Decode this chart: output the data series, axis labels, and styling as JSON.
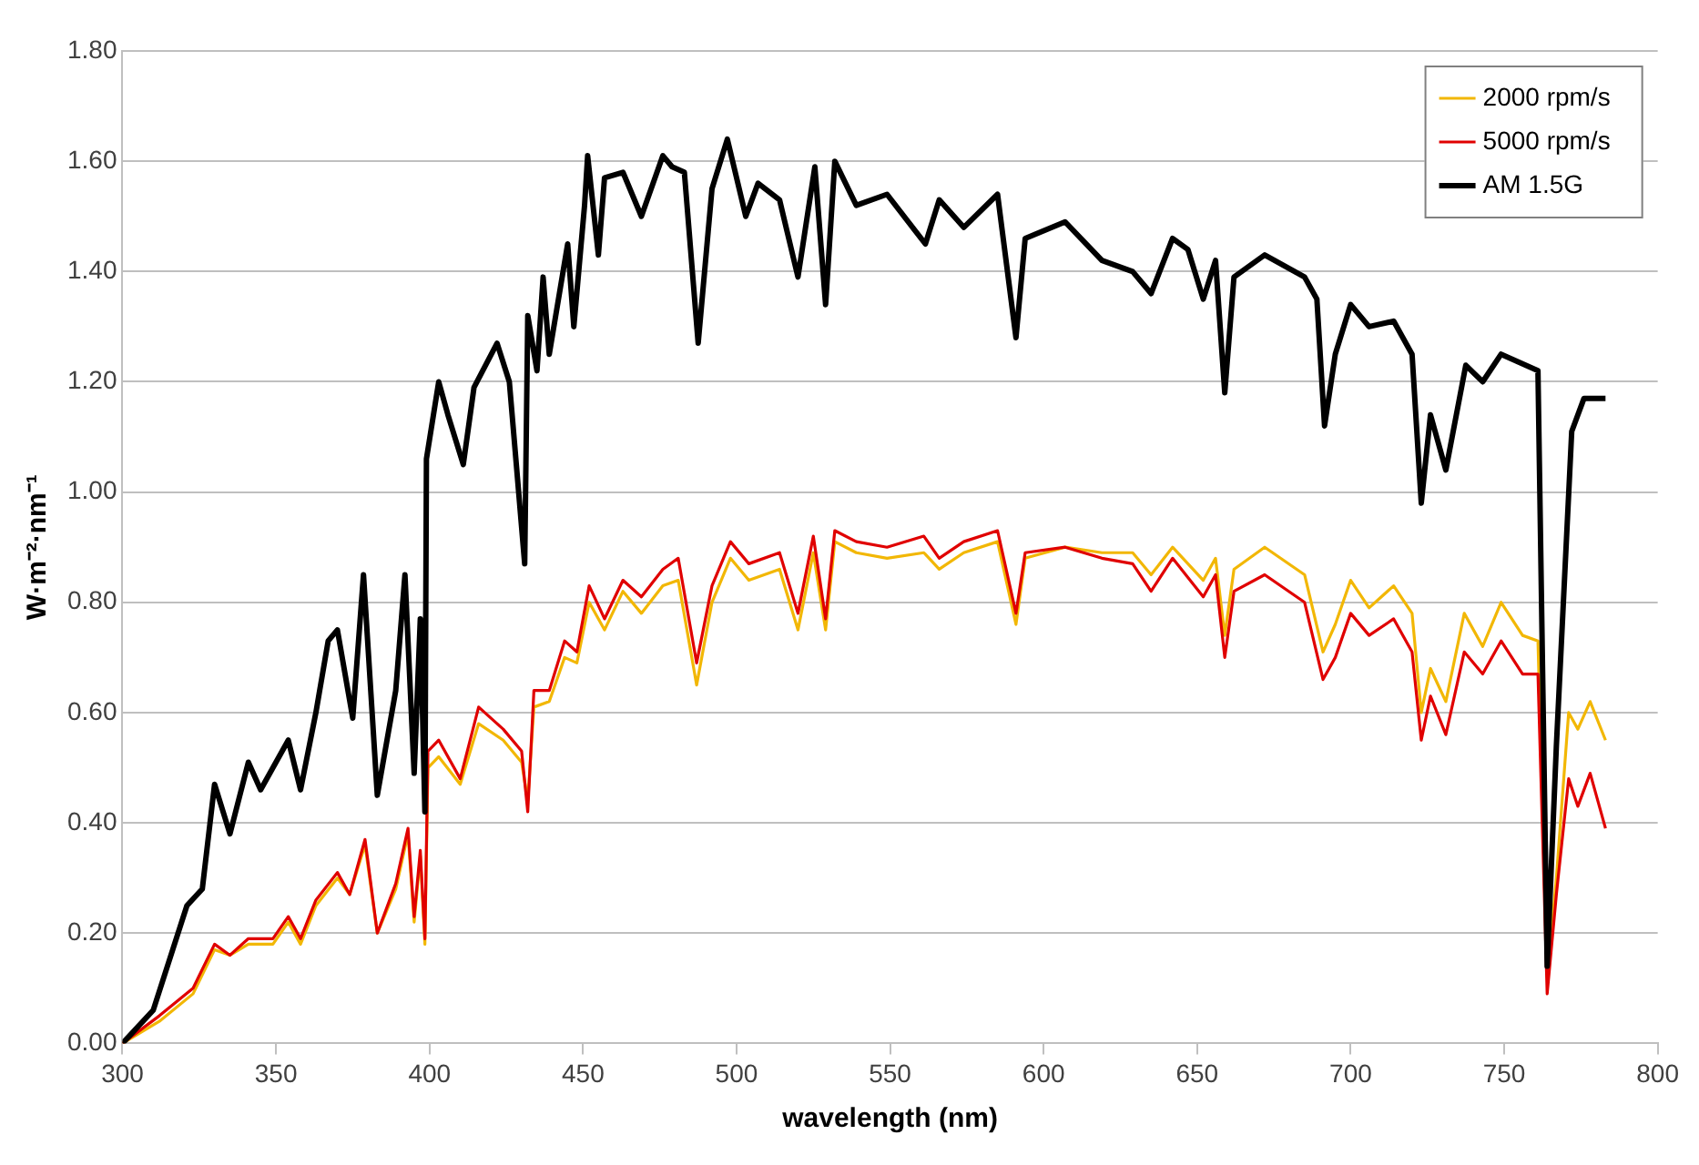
{
  "chart_data": {
    "type": "line",
    "xlabel": "wavelength (nm)",
    "ylabel": "W·m⁻²·nm⁻¹",
    "xlim": [
      300,
      800
    ],
    "xticks": [
      300,
      350,
      400,
      450,
      500,
      550,
      600,
      650,
      700,
      750,
      800
    ],
    "ylim": [
      0,
      1.8
    ],
    "yticks": [
      {
        "value": 0,
        "label": "0.00"
      },
      {
        "value": 0.2,
        "label": "0.20"
      },
      {
        "value": 0.4,
        "label": "0.40"
      },
      {
        "value": 0.6,
        "label": "0.60"
      },
      {
        "value": 0.8,
        "label": "0.80"
      },
      {
        "value": 1,
        "label": "1.00"
      },
      {
        "value": 1.2,
        "label": "1.20"
      },
      {
        "value": 1.4,
        "label": "1.40"
      },
      {
        "value": 1.6,
        "label": "1.60"
      },
      {
        "value": 1.8,
        "label": "1.80"
      }
    ],
    "grid": "y",
    "legend": "top right",
    "marker": "none",
    "line_style": "solid",
    "series": [
      {
        "name": "2000 rpm/s",
        "color": "#f2b705",
        "x": [
          300,
          312,
          323,
          330,
          335,
          341,
          349,
          354,
          358,
          363,
          370,
          374,
          379,
          383,
          389,
          393,
          395,
          397,
          398.5,
          399.5,
          403,
          410,
          416,
          424,
          430,
          432,
          434,
          439,
          444,
          448,
          452,
          457,
          463,
          469,
          476,
          481,
          487,
          492,
          498,
          504,
          514,
          520,
          525,
          529,
          532,
          539,
          549,
          561,
          566,
          574,
          585,
          591,
          594,
          607,
          619,
          629,
          635,
          642,
          652,
          656,
          659,
          662,
          672,
          685,
          691,
          695,
          700,
          706,
          714,
          720,
          723,
          726,
          731,
          737,
          743,
          749,
          756,
          761,
          764,
          767,
          771,
          774,
          778,
          783
        ],
        "values": [
          0,
          0.04,
          0.09,
          0.17,
          0.16,
          0.18,
          0.18,
          0.22,
          0.18,
          0.25,
          0.3,
          0.27,
          0.36,
          0.2,
          0.28,
          0.38,
          0.22,
          0.34,
          0.18,
          0.5,
          0.52,
          0.47,
          0.58,
          0.55,
          0.51,
          0.44,
          0.61,
          0.62,
          0.7,
          0.69,
          0.8,
          0.75,
          0.82,
          0.78,
          0.83,
          0.84,
          0.65,
          0.8,
          0.88,
          0.84,
          0.86,
          0.75,
          0.89,
          0.75,
          0.91,
          0.89,
          0.88,
          0.89,
          0.86,
          0.89,
          0.91,
          0.76,
          0.88,
          0.9,
          0.89,
          0.89,
          0.85,
          0.9,
          0.84,
          0.88,
          0.74,
          0.86,
          0.9,
          0.85,
          0.71,
          0.76,
          0.84,
          0.79,
          0.83,
          0.78,
          0.6,
          0.68,
          0.62,
          0.78,
          0.72,
          0.8,
          0.74,
          0.73,
          0.12,
          0.3,
          0.6,
          0.57,
          0.62,
          0.55
        ]
      },
      {
        "name": "5000 rpm/s",
        "color": "#e00000",
        "x": [
          300,
          312,
          323,
          330,
          335,
          341,
          349,
          354,
          358,
          363,
          370,
          374,
          379,
          383,
          389,
          393,
          395,
          397,
          398.5,
          399.5,
          403,
          410,
          416,
          424,
          430,
          432,
          434,
          439,
          444,
          448,
          452,
          457,
          463,
          469,
          476,
          481,
          487,
          492,
          498,
          504,
          514,
          520,
          525,
          529,
          532,
          539,
          549,
          561,
          566,
          574,
          585,
          591,
          594,
          607,
          619,
          629,
          635,
          642,
          652,
          656,
          659,
          662,
          672,
          685,
          691,
          695,
          700,
          706,
          714,
          720,
          723,
          726,
          731,
          737,
          743,
          749,
          756,
          761,
          764,
          767,
          771,
          774,
          778,
          783
        ],
        "values": [
          0,
          0.05,
          0.1,
          0.18,
          0.16,
          0.19,
          0.19,
          0.23,
          0.19,
          0.26,
          0.31,
          0.27,
          0.37,
          0.2,
          0.29,
          0.39,
          0.23,
          0.35,
          0.19,
          0.53,
          0.55,
          0.48,
          0.61,
          0.57,
          0.53,
          0.42,
          0.64,
          0.64,
          0.73,
          0.71,
          0.83,
          0.77,
          0.84,
          0.81,
          0.86,
          0.88,
          0.69,
          0.83,
          0.91,
          0.87,
          0.89,
          0.78,
          0.92,
          0.77,
          0.93,
          0.91,
          0.9,
          0.92,
          0.88,
          0.91,
          0.93,
          0.78,
          0.89,
          0.9,
          0.88,
          0.87,
          0.82,
          0.88,
          0.81,
          0.85,
          0.7,
          0.82,
          0.85,
          0.8,
          0.66,
          0.7,
          0.78,
          0.74,
          0.77,
          0.71,
          0.55,
          0.63,
          0.56,
          0.71,
          0.67,
          0.73,
          0.67,
          0.67,
          0.09,
          0.27,
          0.48,
          0.43,
          0.49,
          0.39
        ]
      },
      {
        "name": "AM 1.5G",
        "color": "#000000",
        "x": [
          300,
          310,
          321,
          326,
          330,
          335,
          341,
          345,
          354,
          358,
          363,
          367,
          370,
          375,
          378.5,
          383,
          389,
          392,
          395,
          397,
          398.5,
          399,
          403,
          406,
          411,
          414.5,
          422,
          426,
          431,
          432,
          435,
          437,
          439,
          445,
          447,
          450.5,
          451.5,
          455,
          457,
          463,
          469,
          476,
          479,
          483,
          487.5,
          492,
          497,
          503,
          507,
          514,
          520,
          525.5,
          529,
          532,
          539,
          549,
          561.5,
          566,
          574,
          585,
          591,
          594,
          607,
          619,
          629,
          635,
          642,
          647,
          652,
          656,
          659,
          662,
          672,
          685,
          689,
          691.5,
          695,
          700,
          706,
          714,
          720,
          723,
          726,
          731,
          737.5,
          743,
          749,
          761,
          764,
          767,
          772,
          776,
          783
        ],
        "values": [
          0,
          0.06,
          0.25,
          0.28,
          0.47,
          0.38,
          0.51,
          0.46,
          0.55,
          0.46,
          0.6,
          0.73,
          0.75,
          0.59,
          0.85,
          0.45,
          0.64,
          0.85,
          0.49,
          0.77,
          0.42,
          1.06,
          1.2,
          1.14,
          1.05,
          1.19,
          1.27,
          1.2,
          0.87,
          1.32,
          1.22,
          1.39,
          1.25,
          1.45,
          1.3,
          1.52,
          1.61,
          1.43,
          1.57,
          1.58,
          1.5,
          1.61,
          1.59,
          1.58,
          1.27,
          1.55,
          1.64,
          1.5,
          1.56,
          1.53,
          1.39,
          1.59,
          1.34,
          1.6,
          1.52,
          1.54,
          1.45,
          1.53,
          1.48,
          1.54,
          1.28,
          1.46,
          1.49,
          1.42,
          1.4,
          1.36,
          1.46,
          1.44,
          1.35,
          1.42,
          1.18,
          1.39,
          1.43,
          1.39,
          1.35,
          1.12,
          1.25,
          1.34,
          1.3,
          1.31,
          1.25,
          0.98,
          1.14,
          1.04,
          1.23,
          1.2,
          1.25,
          1.22,
          0.14,
          0.54,
          1.11,
          1.17,
          1.17
        ]
      }
    ]
  }
}
